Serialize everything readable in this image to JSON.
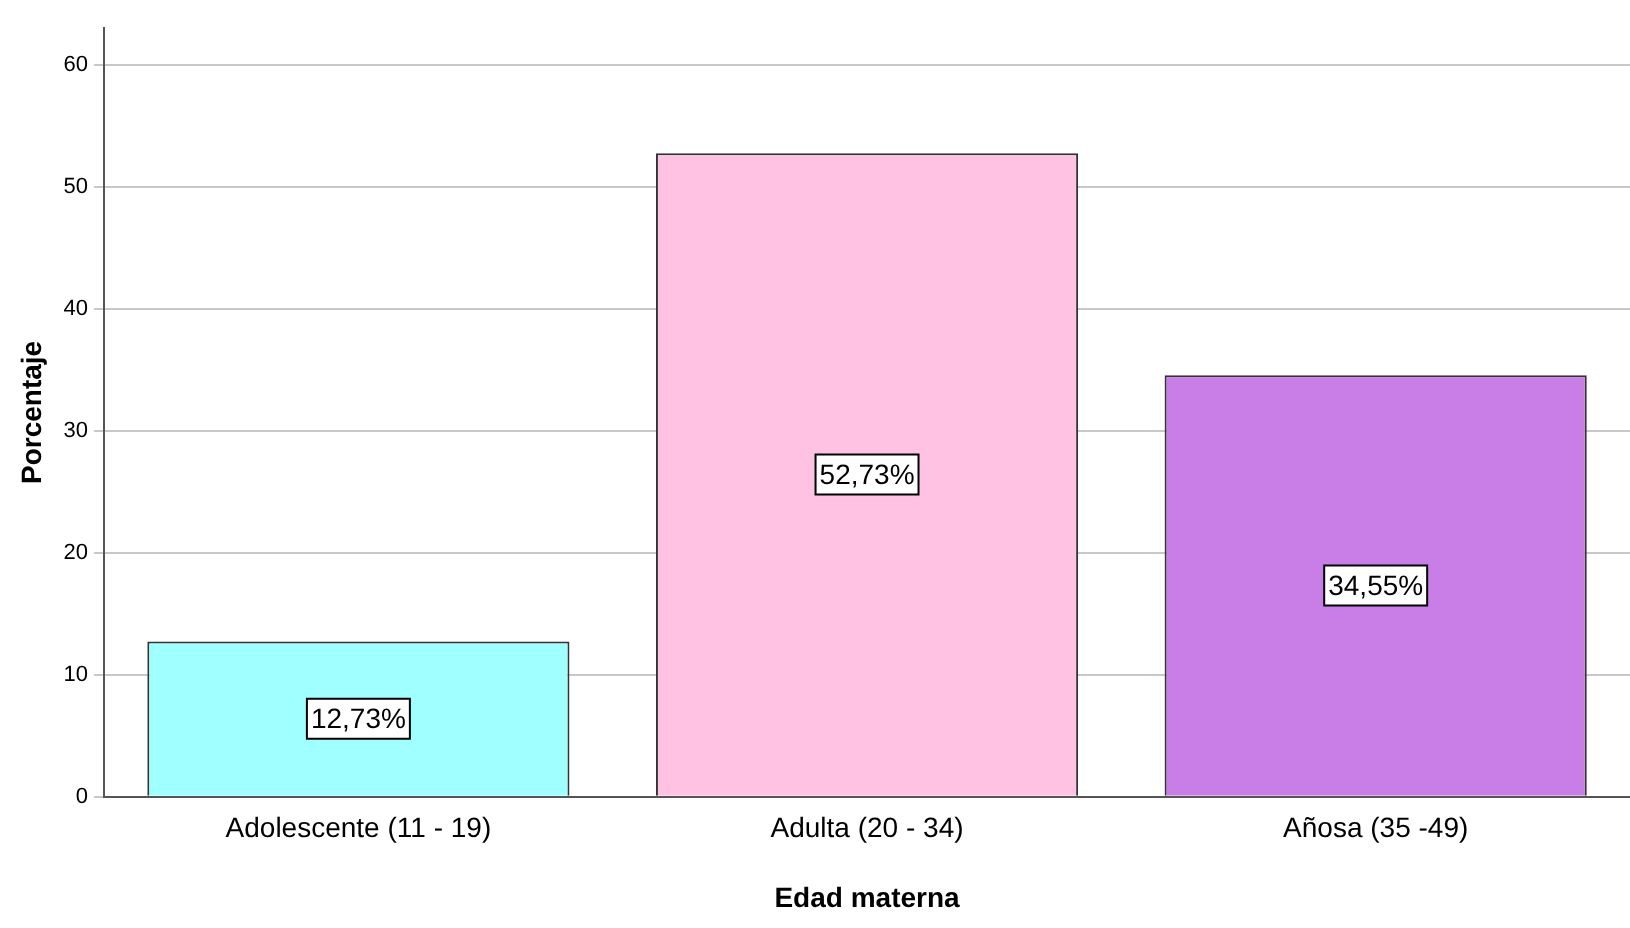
{
  "chart_data": {
    "type": "bar",
    "xlabel": "Edad materna",
    "ylabel": "Porcentaje",
    "categories": [
      "Adolescente (11 - 19)",
      "Adulta (20 - 34)",
      "Añosa (35 -49)"
    ],
    "values": [
      12.73,
      52.73,
      34.55
    ],
    "colors": [
      "#a0ffff",
      "#ffc2e2",
      "#c87ee6"
    ],
    "value_labels": [
      "12,73%",
      "52,73%",
      "34,55%"
    ],
    "ylim": [
      0,
      63
    ],
    "yticks": [
      0,
      10,
      20,
      30,
      40,
      50,
      60
    ],
    "grid": "y",
    "legend": false
  }
}
